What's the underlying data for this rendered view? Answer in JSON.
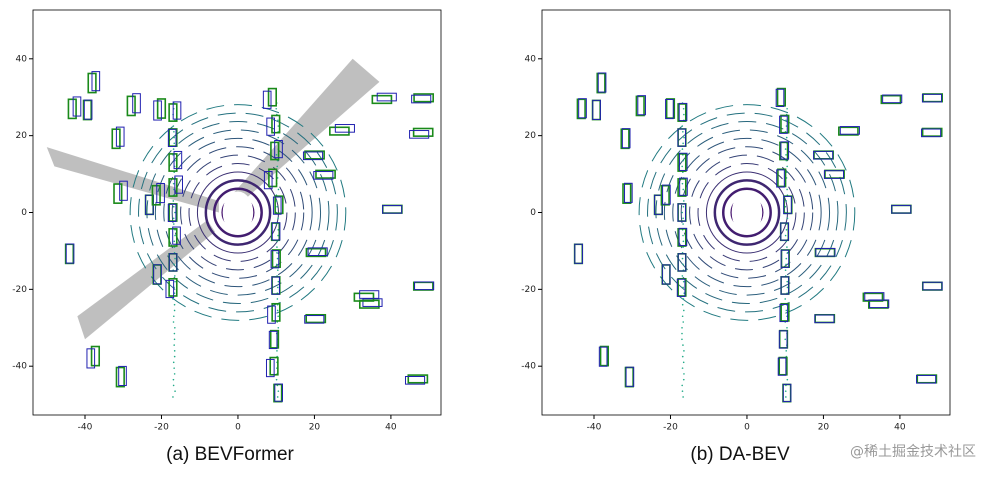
{
  "panels": [
    {
      "caption": "(a) BEVFormer",
      "xlim": [
        -53.6,
        53.1
      ],
      "ylim": [
        -52.7,
        52.7
      ],
      "xticks": [
        -40,
        -20,
        0,
        20,
        40
      ],
      "yticks": [
        -40,
        -20,
        0,
        20,
        40
      ]
    },
    {
      "caption": "(b) DA-BEV",
      "xlim": [
        -53.6,
        53.1
      ],
      "ylim": [
        -52.7,
        52.7
      ],
      "xticks": [
        -40,
        -20,
        0,
        20,
        40
      ],
      "yticks": [
        -40,
        -20,
        0,
        20,
        40
      ]
    }
  ],
  "watermark": "@稀土掘金技术社区"
}
